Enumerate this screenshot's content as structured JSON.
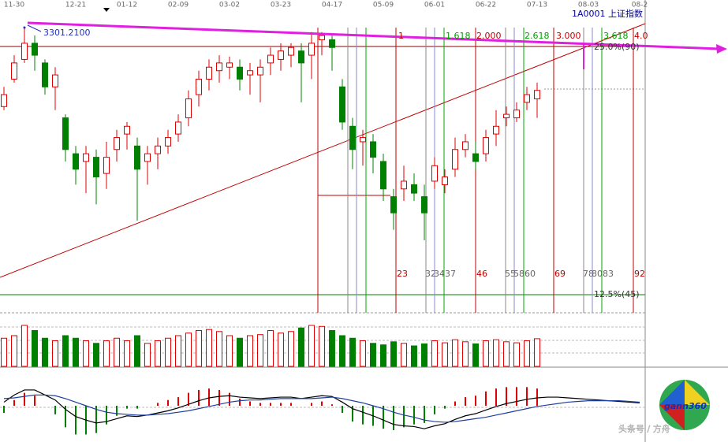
{
  "chart_data": {
    "type": "candlestick",
    "title": "1A0001 上证指数",
    "annotation": {
      "value": 3301.21,
      "label": "3301.2100"
    },
    "categories": [
      null,
      "11-30",
      null,
      null,
      null,
      null,
      null,
      "12-21",
      null,
      null,
      null,
      null,
      "01-12",
      null,
      null,
      null,
      null,
      "02-09",
      null,
      null,
      null,
      null,
      "03-02",
      null,
      null,
      null,
      null,
      "03-23",
      null,
      null,
      null,
      null,
      "04-17",
      null,
      null,
      null,
      null,
      "05-09",
      null,
      null,
      null,
      null,
      "06-01",
      null,
      null,
      null,
      null,
      "06-22",
      null,
      null,
      null,
      null,
      "07-13",
      null,
      null,
      null,
      null,
      "08-03",
      null,
      null,
      null,
      null,
      "08-2"
    ],
    "open": [
      3189,
      3228,
      3256,
      3279,
      3251,
      3217,
      3173,
      3122,
      3111,
      3117,
      3094,
      3128,
      3150,
      3133,
      3111,
      3122,
      3133,
      3150,
      3173,
      3206,
      3228,
      3240,
      3245,
      3245,
      3234,
      3234,
      3251,
      3256,
      3262,
      3268,
      3262,
      3284,
      3284,
      3217,
      3161,
      3139,
      3139,
      3111,
      3061,
      3072,
      3078,
      3061,
      3083,
      3078,
      3100,
      3128,
      3122,
      3122,
      3150,
      3173,
      3173,
      3195,
      3200,
      null,
      null,
      null,
      null,
      null,
      null,
      null,
      null,
      null,
      null
    ],
    "high": [
      3217,
      3262,
      3301.21,
      3290,
      3256,
      3245,
      3178,
      3133,
      3133,
      3128,
      3139,
      3156,
      3167,
      3145,
      3133,
      3145,
      3156,
      3178,
      3212,
      3240,
      3256,
      3262,
      3260,
      3256,
      3251,
      3256,
      3273,
      3279,
      3279,
      3279,
      3295,
      3295,
      3290,
      3228,
      3173,
      3156,
      3150,
      3122,
      3072,
      3105,
      3094,
      3078,
      3117,
      3100,
      3145,
      3150,
      3139,
      3156,
      3184,
      3189,
      3195,
      3217,
      3223,
      null,
      null,
      null,
      null,
      null,
      null,
      null,
      null,
      null,
      null
    ],
    "low": [
      3184,
      3223,
      3251,
      3240,
      3206,
      3184,
      3111,
      3078,
      3066,
      3050,
      3072,
      3111,
      3128,
      3027,
      3078,
      3100,
      3122,
      3139,
      3161,
      3189,
      3212,
      3223,
      3228,
      3212,
      3206,
      3195,
      3234,
      3240,
      3245,
      3195,
      3228,
      3262,
      3240,
      3156,
      3100,
      3105,
      3094,
      3055,
      3014,
      3055,
      3055,
      2999,
      3072,
      3066,
      3089,
      3117,
      3100,
      3111,
      3133,
      3161,
      3167,
      3184,
      3173,
      null,
      null,
      null,
      null,
      null,
      null,
      null,
      null,
      null,
      null
    ],
    "close": [
      3206,
      3251,
      3279,
      3262,
      3217,
      3234,
      3128,
      3100,
      3122,
      3089,
      3117,
      3145,
      3161,
      3100,
      3122,
      3133,
      3145,
      3167,
      3200,
      3228,
      3245,
      3251,
      3251,
      3228,
      3240,
      3245,
      3262,
      3268,
      3273,
      3251,
      3279,
      3290,
      3273,
      3167,
      3128,
      3145,
      3117,
      3072,
      3038,
      3083,
      3066,
      3038,
      3105,
      3089,
      3128,
      3139,
      3111,
      3145,
      3161,
      3178,
      3184,
      3206,
      3212,
      null,
      null,
      null,
      null,
      null,
      null,
      null,
      null,
      null,
      null
    ],
    "ylim": [
      2896,
      3327
    ],
    "up_color": "#e00000",
    "down_color": "#008000",
    "volume": {
      "ylim": [
        0,
        100
      ],
      "values": [
        55,
        60,
        80,
        70,
        55,
        50,
        60,
        55,
        50,
        45,
        50,
        55,
        50,
        60,
        45,
        50,
        55,
        60,
        65,
        70,
        72,
        68,
        60,
        55,
        60,
        62,
        70,
        65,
        68,
        75,
        80,
        78,
        70,
        60,
        55,
        50,
        45,
        42,
        48,
        45,
        40,
        44,
        50,
        46,
        52,
        48,
        44,
        50,
        52,
        48,
        46,
        50,
        54,
        null,
        null,
        null,
        null,
        null,
        null,
        null,
        null,
        null,
        null
      ]
    },
    "macd": {
      "ylim": [
        -45,
        45
      ],
      "dif_color": "#000000",
      "dea_color": "#1f3f9f",
      "dif": [
        5,
        15,
        22,
        22,
        15,
        8,
        -5,
        -15,
        -20,
        -24,
        -22,
        -18,
        -14,
        -15,
        -13,
        -10,
        -7,
        -3,
        2,
        7,
        11,
        13,
        14,
        12,
        11,
        10,
        11,
        12,
        12,
        10,
        12,
        14,
        13,
        5,
        -4,
        -9,
        -14,
        -20,
        -26,
        -28,
        -29,
        -32,
        -28,
        -25,
        -19,
        -14,
        -11,
        -6,
        -1,
        3,
        6,
        9,
        11,
        12,
        12,
        11,
        10,
        9,
        8,
        7,
        6,
        5,
        4
      ],
      "dea": [
        10,
        11,
        13,
        15,
        15,
        14,
        10,
        5,
        0,
        -5,
        -9,
        -11,
        -12,
        -13,
        -13,
        -12,
        -11,
        -9,
        -7,
        -4,
        -1,
        2,
        5,
        7,
        8,
        8,
        9,
        10,
        10,
        10,
        10,
        11,
        12,
        10,
        7,
        4,
        0,
        -4,
        -9,
        -13,
        -16,
        -20,
        -22,
        -23,
        -22,
        -20,
        -18,
        -16,
        -13,
        -10,
        -7,
        -4,
        -1,
        1,
        3,
        5,
        6,
        7,
        7,
        7,
        7,
        6,
        5
      ],
      "histogram": [
        -10,
        8,
        18,
        14,
        0,
        -12,
        -30,
        -40,
        -40,
        -38,
        -26,
        -14,
        -4,
        -4,
        0,
        4,
        8,
        12,
        18,
        22,
        24,
        22,
        18,
        10,
        6,
        4,
        4,
        4,
        4,
        0,
        4,
        6,
        2,
        -10,
        -22,
        -26,
        -28,
        -32,
        -34,
        -30,
        -26,
        -24,
        -12,
        -4,
        6,
        12,
        14,
        20,
        24,
        26,
        26,
        26,
        24,
        null,
        null,
        null,
        null,
        null,
        null,
        null,
        null,
        null,
        null
      ]
    },
    "fib_labels": [
      "1",
      "1.618",
      "2.000",
      "2.618",
      "3.000",
      "3.618",
      "4.0"
    ],
    "cycle_labels": [
      "23",
      "32",
      "34",
      "37",
      "46",
      "55",
      "58",
      "60",
      "69",
      "78",
      "80",
      "83",
      "92"
    ],
    "level_labels": [
      "25.0%(90)",
      "12.5%(45)"
    ],
    "logo": "gann360",
    "watermark": "头条号 / 方舟"
  }
}
